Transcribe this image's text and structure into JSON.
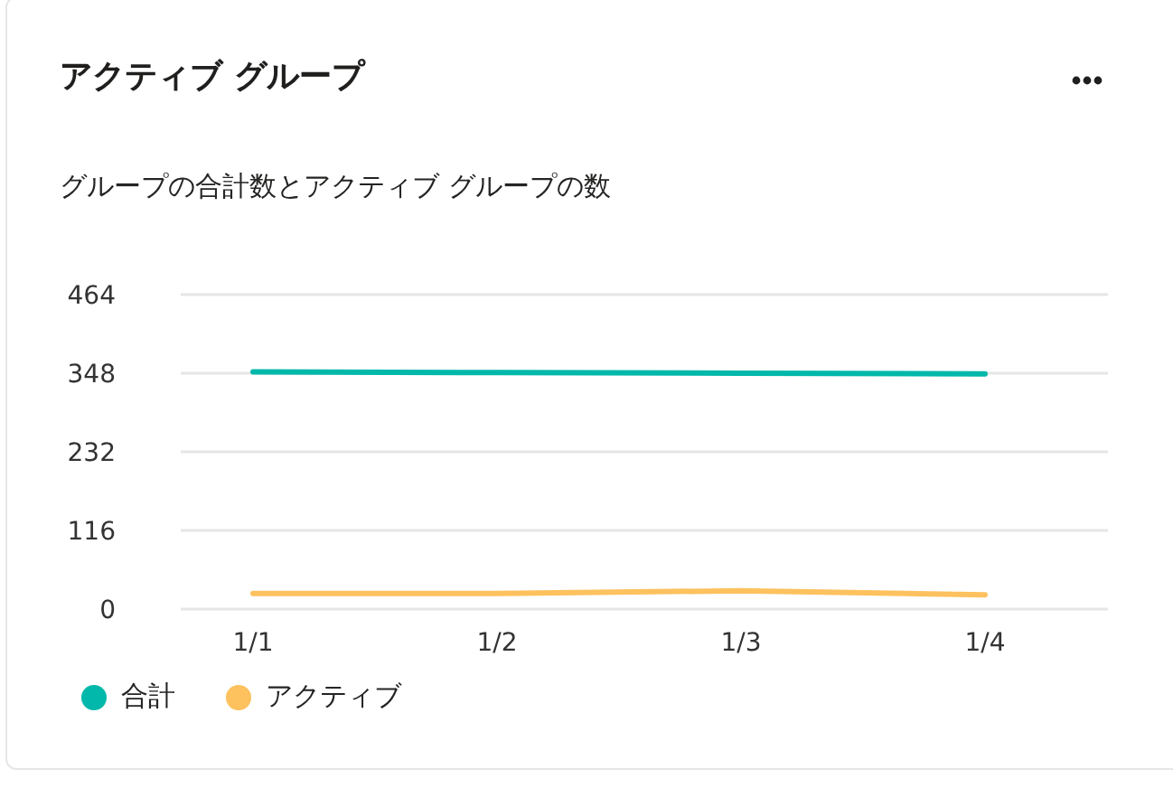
{
  "chart_data": {
    "type": "line",
    "title": "アクティブ グループ",
    "subtitle": "グループの合計数とアクティブ グループの数",
    "categories": [
      "1/1",
      "1/2",
      "1/3",
      "1/4"
    ],
    "series": [
      {
        "name": "合計",
        "color": "#01b8aa",
        "values": [
          350,
          349,
          348,
          347
        ]
      },
      {
        "name": "アクティブ",
        "color": "#fdc15e",
        "values": [
          23,
          23,
          27,
          21
        ]
      }
    ],
    "ylim": [
      0,
      464
    ],
    "yticks": [
      0,
      116,
      232,
      348,
      464
    ],
    "grid": "y",
    "legend": "bottom left",
    "line_style": "solid"
  }
}
